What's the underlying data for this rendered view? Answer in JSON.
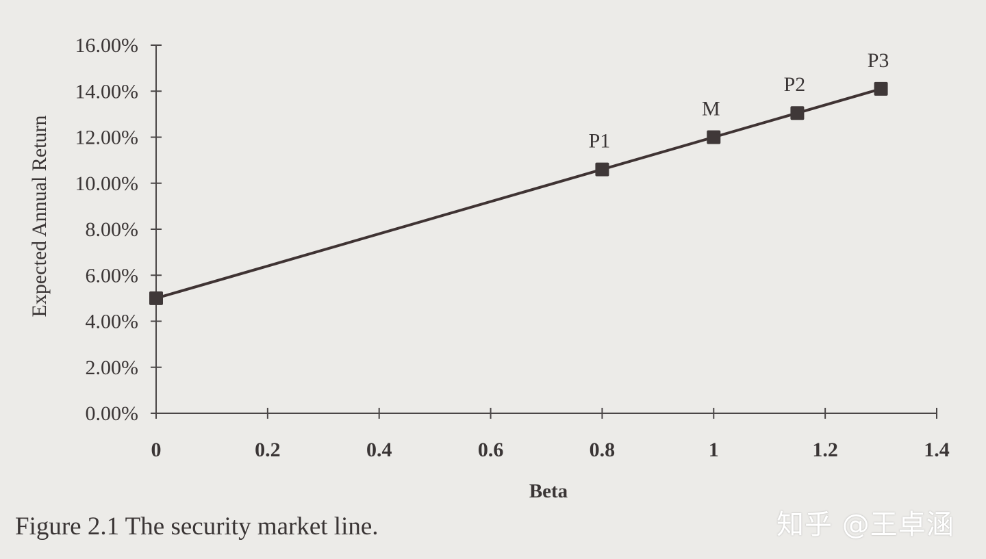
{
  "chart_data": {
    "type": "line",
    "xlabel": "Beta",
    "ylabel": "Expected Annual Return",
    "xlim": [
      0,
      1.4
    ],
    "ylim": [
      0,
      16
    ],
    "x_ticks": [
      "0",
      "0.2",
      "0.4",
      "0.6",
      "0.8",
      "1",
      "1.2",
      "1.4"
    ],
    "y_ticks": [
      "0.00%",
      "2.00%",
      "4.00%",
      "6.00%",
      "8.00%",
      "10.00%",
      "12.00%",
      "14.00%",
      "16.00%"
    ],
    "grid": false,
    "series": [
      {
        "x": [
          0,
          0.8,
          1.0,
          1.15,
          1.3
        ],
        "y": [
          5.0,
          10.6,
          12.0,
          13.05,
          14.1
        ],
        "labels": [
          "",
          "P1",
          "M",
          "P2",
          "P3"
        ]
      }
    ],
    "colors": {
      "line": "#3f3333",
      "marker": "#3f3838",
      "axis": "#4a4646"
    }
  },
  "caption": "Figure 2.1  The security market line.",
  "watermark": "知乎 @王卓涵"
}
